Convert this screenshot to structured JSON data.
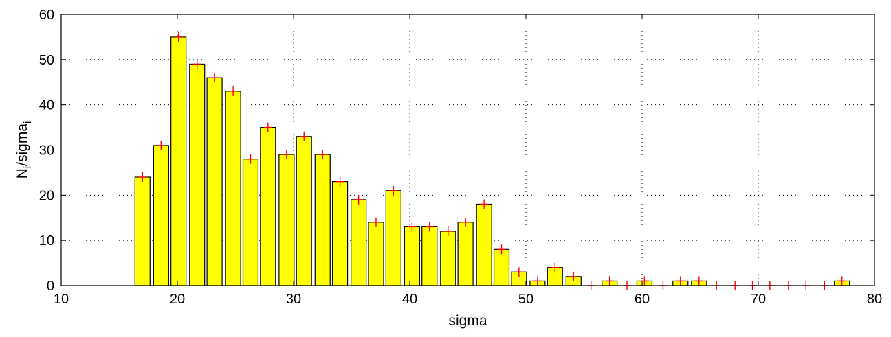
{
  "chart_data": {
    "type": "bar",
    "xlabel": "sigma",
    "ylabel": {
      "base": "N",
      "sub": "i",
      "mid": "/sigma",
      "sub2": "i"
    },
    "xlim": [
      10,
      80
    ],
    "ylim": [
      0,
      60
    ],
    "xticks": [
      10,
      20,
      30,
      40,
      50,
      60,
      70,
      80
    ],
    "yticks": [
      0,
      10,
      20,
      30,
      40,
      50,
      60
    ],
    "grid": true,
    "bar_color": "#ffff00",
    "marker_color": "#ff0000",
    "bar_width": 1.3,
    "x": [
      17.0,
      18.6,
      20.1,
      21.7,
      23.2,
      24.8,
      26.3,
      27.8,
      29.4,
      30.9,
      32.5,
      34.0,
      35.6,
      37.1,
      38.6,
      40.2,
      41.7,
      43.3,
      44.8,
      46.4,
      47.9,
      49.4,
      51.0,
      52.5,
      54.1,
      55.6,
      57.2,
      58.7,
      60.2,
      61.8,
      63.3,
      64.9,
      66.4,
      68.0,
      69.5,
      71.0,
      72.6,
      74.1,
      75.7,
      77.2
    ],
    "values": [
      24,
      31,
      55,
      49,
      46,
      43,
      28,
      35,
      29,
      33,
      29,
      23,
      19,
      14,
      21,
      13,
      13,
      12,
      14,
      18,
      8,
      3,
      1,
      4,
      2,
      0,
      1,
      0,
      1,
      0,
      1,
      1,
      0,
      0,
      0,
      0,
      0,
      0,
      0,
      1
    ]
  }
}
